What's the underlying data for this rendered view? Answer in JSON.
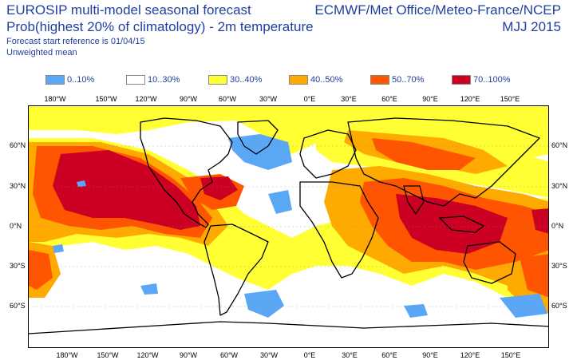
{
  "header": {
    "title": "EUROSIP multi-model seasonal forecast",
    "subtitle": "Prob(highest 20% of climatology) - 2m temperature",
    "reference": "Forecast start reference is 01/04/15",
    "mean_type": "Unweighted mean",
    "centres": "ECMWF/Met Office/Meteo-France/NCEP",
    "period": "MJJ 2015"
  },
  "legend": [
    {
      "label": "0..10%",
      "color": "#5aa7f5"
    },
    {
      "label": "10..30%",
      "color": "#ffffff"
    },
    {
      "label": "30..40%",
      "color": "#ffff33"
    },
    {
      "label": "40..50%",
      "color": "#ffaa00"
    },
    {
      "label": "50..70%",
      "color": "#ff5500"
    },
    {
      "label": "70..100%",
      "color": "#cc0022"
    }
  ],
  "axes": {
    "lon_labels": [
      "180°W",
      "150°W",
      "120°W",
      "90°W",
      "60°W",
      "30°W",
      "0°E",
      "30°E",
      "60°E",
      "90°E",
      "120°E",
      "150°E"
    ],
    "lat_labels": [
      "60°N",
      "30°N",
      "0°N",
      "30°S",
      "60°S"
    ]
  }
}
